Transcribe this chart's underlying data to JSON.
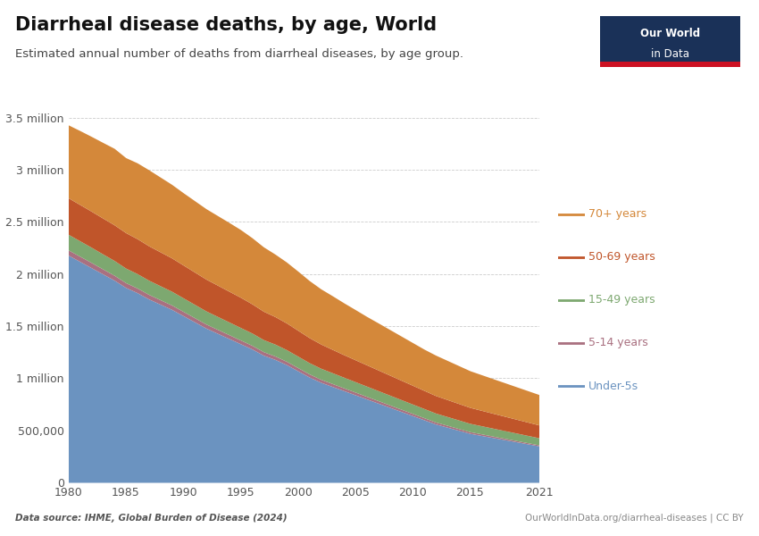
{
  "title": "Diarrheal disease deaths, by age, World",
  "subtitle": "Estimated annual number of deaths from diarrheal diseases, by age group.",
  "source_left": "Data source: IHME, Global Burden of Disease (2024)",
  "source_right": "OurWorldInData.org/diarrheal-diseases | CC BY",
  "years": [
    1980,
    1981,
    1982,
    1983,
    1984,
    1985,
    1986,
    1987,
    1988,
    1989,
    1990,
    1991,
    1992,
    1993,
    1994,
    1995,
    1996,
    1997,
    1998,
    1999,
    2000,
    2001,
    2002,
    2003,
    2004,
    2005,
    2006,
    2007,
    2008,
    2009,
    2010,
    2011,
    2012,
    2013,
    2014,
    2015,
    2016,
    2017,
    2018,
    2019,
    2020,
    2021
  ],
  "under5": [
    2180000,
    2120000,
    2060000,
    2000000,
    1940000,
    1870000,
    1820000,
    1760000,
    1710000,
    1660000,
    1600000,
    1540000,
    1480000,
    1430000,
    1380000,
    1330000,
    1280000,
    1220000,
    1180000,
    1130000,
    1070000,
    1010000,
    960000,
    920000,
    880000,
    840000,
    800000,
    760000,
    720000,
    680000,
    640000,
    600000,
    560000,
    530000,
    500000,
    470000,
    450000,
    430000,
    410000,
    390000,
    370000,
    350000
  ],
  "age5_14": [
    50000,
    50000,
    50000,
    48000,
    47000,
    46000,
    45000,
    44000,
    43000,
    42000,
    41000,
    40000,
    39000,
    38000,
    37000,
    36000,
    35000,
    34000,
    33000,
    32000,
    31000,
    30000,
    29000,
    28000,
    27000,
    26000,
    25000,
    24000,
    23000,
    22000,
    21000,
    20000,
    19000,
    18000,
    17000,
    16000,
    15000,
    14000,
    13000,
    12000,
    11000,
    10000
  ],
  "age15_49": [
    150000,
    148000,
    146000,
    144000,
    142000,
    140000,
    138000,
    136000,
    134000,
    132000,
    130000,
    128000,
    126000,
    124000,
    122000,
    120000,
    118000,
    116000,
    114000,
    112000,
    110000,
    108000,
    106000,
    104000,
    102000,
    100000,
    98000,
    96000,
    94000,
    92000,
    90000,
    88000,
    86000,
    84000,
    82000,
    80000,
    78000,
    76000,
    74000,
    72000,
    70000,
    68000
  ],
  "age50_69": [
    350000,
    348000,
    346000,
    344000,
    342000,
    340000,
    335000,
    330000,
    325000,
    320000,
    315000,
    310000,
    305000,
    300000,
    295000,
    290000,
    280000,
    272000,
    264000,
    256000,
    248000,
    240000,
    232000,
    224000,
    216000,
    210000,
    204000,
    198000,
    192000,
    186000,
    180000,
    174000,
    168000,
    163000,
    158000,
    153000,
    148000,
    143000,
    138000,
    133000,
    128000,
    123000
  ],
  "age70plus": [
    700000,
    710000,
    718000,
    726000,
    734000,
    720000,
    728000,
    730000,
    718000,
    706000,
    694000,
    685000,
    676000,
    668000,
    660000,
    650000,
    635000,
    618000,
    600000,
    585000,
    568000,
    548000,
    530000,
    515000,
    498000,
    482000,
    465000,
    452000,
    438000,
    424000,
    410000,
    396000,
    388000,
    376000,
    364000,
    352000,
    342000,
    332000,
    322000,
    312000,
    302000,
    292000
  ],
  "colors": {
    "under5": "#6b93c0",
    "age5_14": "#a97080",
    "age15_49": "#7da870",
    "age50_69": "#c0552a",
    "age70plus": "#d4883a"
  },
  "legend_labels": [
    "70+ years",
    "50-69 years",
    "15-49 years",
    "5-14 years",
    "Under-5s"
  ],
  "legend_colors": [
    "#d4883a",
    "#c0552a",
    "#7da870",
    "#a97080",
    "#6b93c0"
  ],
  "ylim": [
    0,
    3600000
  ],
  "yticks": [
    0,
    500000,
    1000000,
    1500000,
    2000000,
    2500000,
    3000000,
    3500000
  ],
  "ytick_labels": [
    "0",
    "500,000",
    "1 million",
    "1.5 million",
    "2 million",
    "2.5 million",
    "3 million",
    "3.5 million"
  ],
  "background_color": "#ffffff",
  "logo_bg": "#1a3158",
  "logo_text_line1": "Our World",
  "logo_text_line2": "in Data"
}
